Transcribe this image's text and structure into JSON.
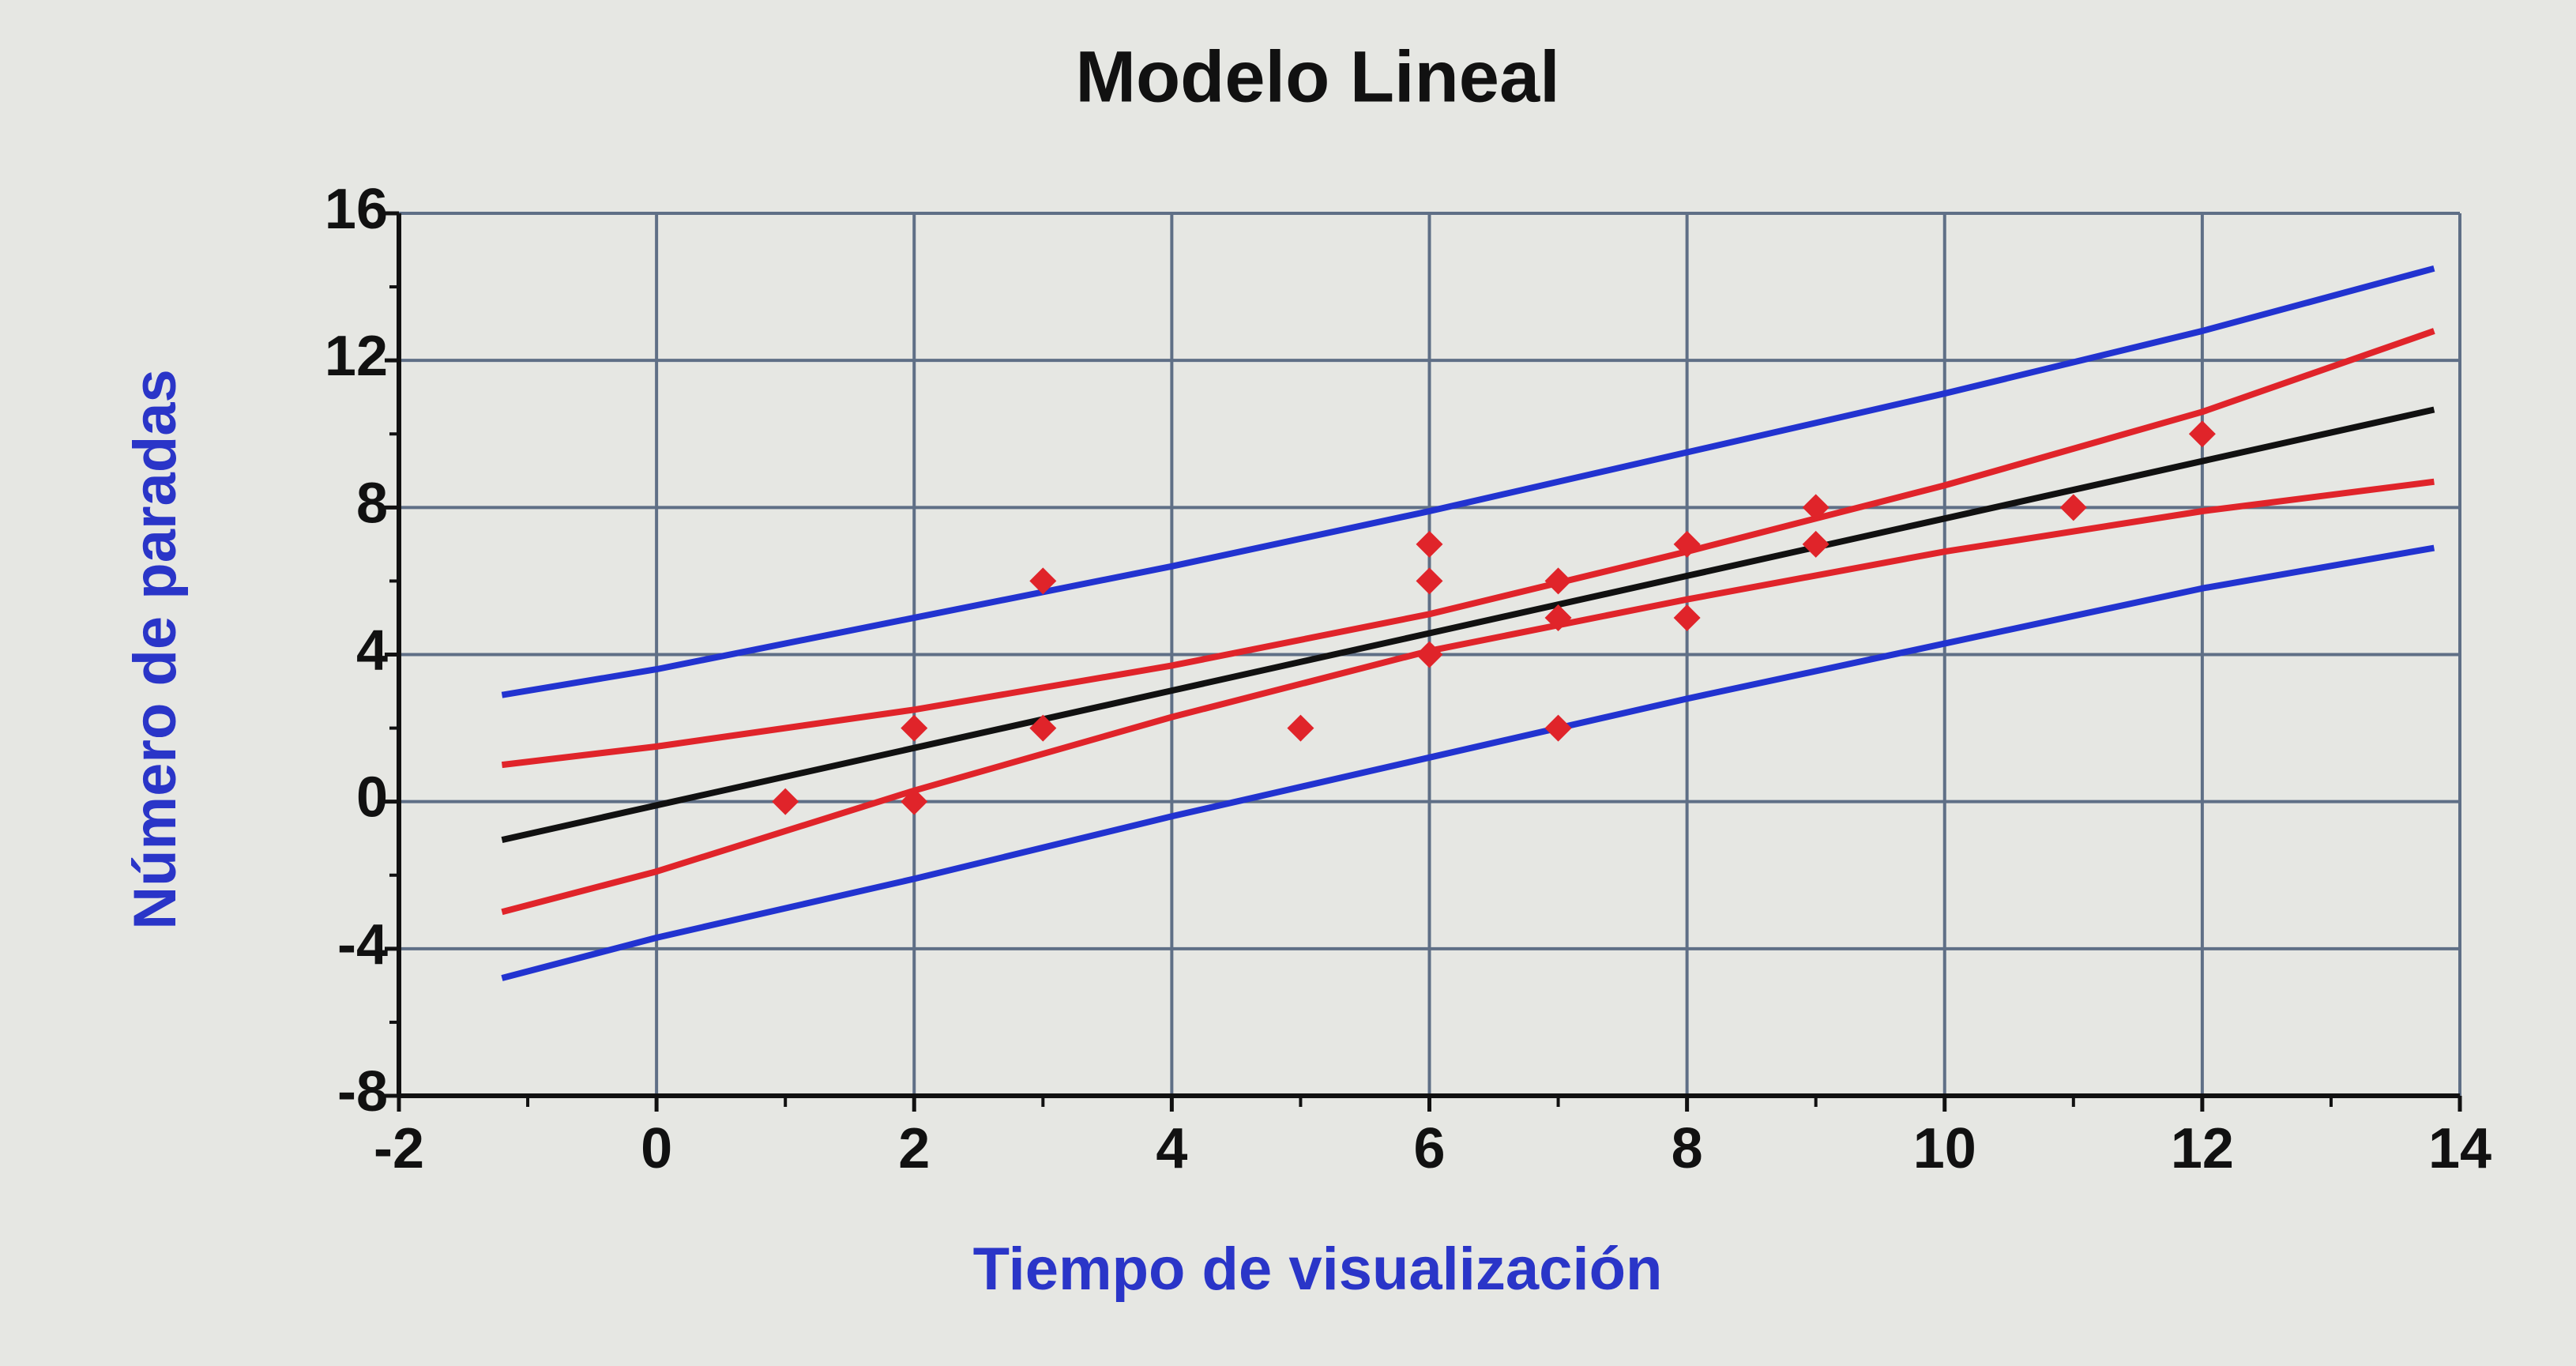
{
  "chart_data": {
    "type": "scatter",
    "title": "Modelo Lineal",
    "x_label": "Tiempo de visualización",
    "y_label": "Número de paradas",
    "xlim": [
      -2,
      14
    ],
    "ylim": [
      -8,
      16
    ],
    "xticks": [
      -2,
      0,
      2,
      4,
      6,
      8,
      10,
      12,
      14
    ],
    "yticks": [
      -8,
      -4,
      0,
      4,
      8,
      12,
      16
    ],
    "xminorticks": [
      -1,
      1,
      3,
      5,
      7,
      9,
      11,
      13
    ],
    "yminorticks": [
      -6,
      -2,
      2,
      6,
      10,
      14
    ],
    "grid": true,
    "points": {
      "color": "#e0242a",
      "x": [
        1,
        2,
        2,
        3,
        3,
        5,
        6,
        6,
        6,
        7,
        7,
        7,
        8,
        8,
        9,
        9,
        11,
        12
      ],
      "values": [
        0,
        2,
        0,
        6,
        2,
        2,
        7,
        6,
        4,
        6,
        5,
        2,
        7,
        5,
        8,
        7,
        8,
        10
      ]
    },
    "lines": [
      {
        "color": "#2233d0",
        "x": [
          -1.2,
          0,
          2,
          4,
          6,
          8,
          10,
          12,
          13.8
        ],
        "values": [
          2.9,
          3.6,
          5.0,
          6.4,
          7.9,
          9.5,
          11.1,
          12.8,
          14.5
        ]
      },
      {
        "color": "#e0242a",
        "x": [
          -1.2,
          0,
          2,
          4,
          6,
          8,
          10,
          12,
          13.8
        ],
        "values": [
          1.0,
          1.5,
          2.5,
          3.7,
          5.1,
          6.8,
          8.6,
          10.6,
          12.8
        ]
      },
      {
        "color": "#111111",
        "x": [
          -1.2,
          0,
          2,
          4,
          6,
          8,
          10,
          12,
          13.8
        ],
        "values": [
          -1.04,
          -0.1,
          1.46,
          3.02,
          4.58,
          6.14,
          7.7,
          9.26,
          10.66
        ]
      },
      {
        "color": "#e0242a",
        "x": [
          -1.2,
          0,
          2,
          4,
          6,
          8,
          10,
          12,
          13.8
        ],
        "values": [
          -3.0,
          -1.9,
          0.3,
          2.3,
          4.1,
          5.5,
          6.8,
          7.9,
          8.7
        ]
      },
      {
        "color": "#2233d0",
        "x": [
          -1.2,
          0,
          2,
          4,
          6,
          8,
          10,
          12,
          13.8
        ],
        "values": [
          -4.8,
          -3.7,
          -2.1,
          -0.4,
          1.2,
          2.8,
          4.3,
          5.8,
          6.9
        ]
      }
    ]
  }
}
